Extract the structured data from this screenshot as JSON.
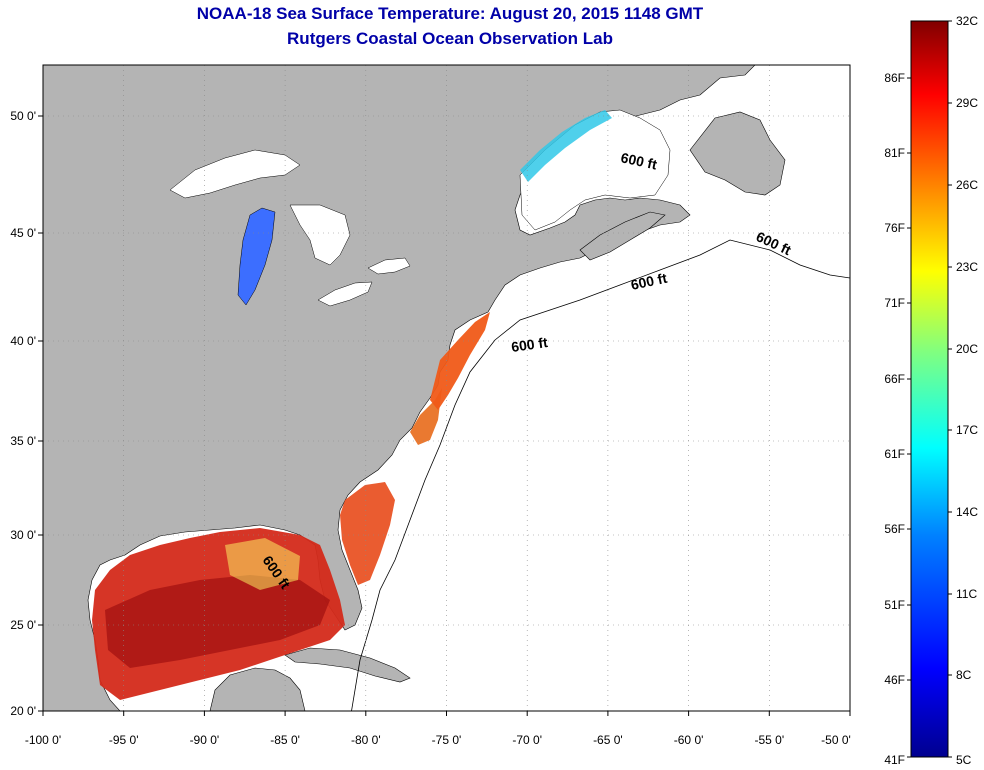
{
  "title": {
    "line1": "NOAA-18 Sea Surface Temperature:  August 20, 2015 1148 GMT",
    "line2": "Rutgers Coastal Ocean Observation Lab"
  },
  "map": {
    "lon_range": [
      -100,
      -50
    ],
    "lat_range": [
      20,
      52.5
    ],
    "lon_ticks": [
      "-100 0'",
      "-95 0'",
      "-90 0'",
      "-85 0'",
      "-80 0'",
      "-75 0'",
      "-70 0'",
      "-65 0'",
      "-60 0'",
      "-55 0'",
      "-50 0'"
    ],
    "lat_ticks": [
      "20 0'",
      "25 0'",
      "30 0'",
      "35 0'",
      "40 0'",
      "45 0'",
      "50 0'"
    ],
    "grid": true,
    "land_color": "#b4b4b4",
    "ocean_nodata_color": "#ffffff",
    "contour_labels": [
      "600 ft",
      "600 ft",
      "600 ft",
      "600 ft",
      "600 ft"
    ]
  },
  "colorbar": {
    "celsius_labels": [
      "32C",
      "29C",
      "26C",
      "23C",
      "20C",
      "17C",
      "14C",
      "11C",
      "8C",
      "5C"
    ],
    "fahrenheit_labels": [
      "86F",
      "81F",
      "76F",
      "71F",
      "66F",
      "61F",
      "56F",
      "51F",
      "46F",
      "41F"
    ],
    "range_c": [
      5,
      32
    ],
    "colormap": "jet",
    "colors": [
      "#00008f",
      "#0000ff",
      "#0080ff",
      "#00ffff",
      "#80ff80",
      "#ffff00",
      "#ff8000",
      "#ff0000",
      "#800000"
    ]
  }
}
